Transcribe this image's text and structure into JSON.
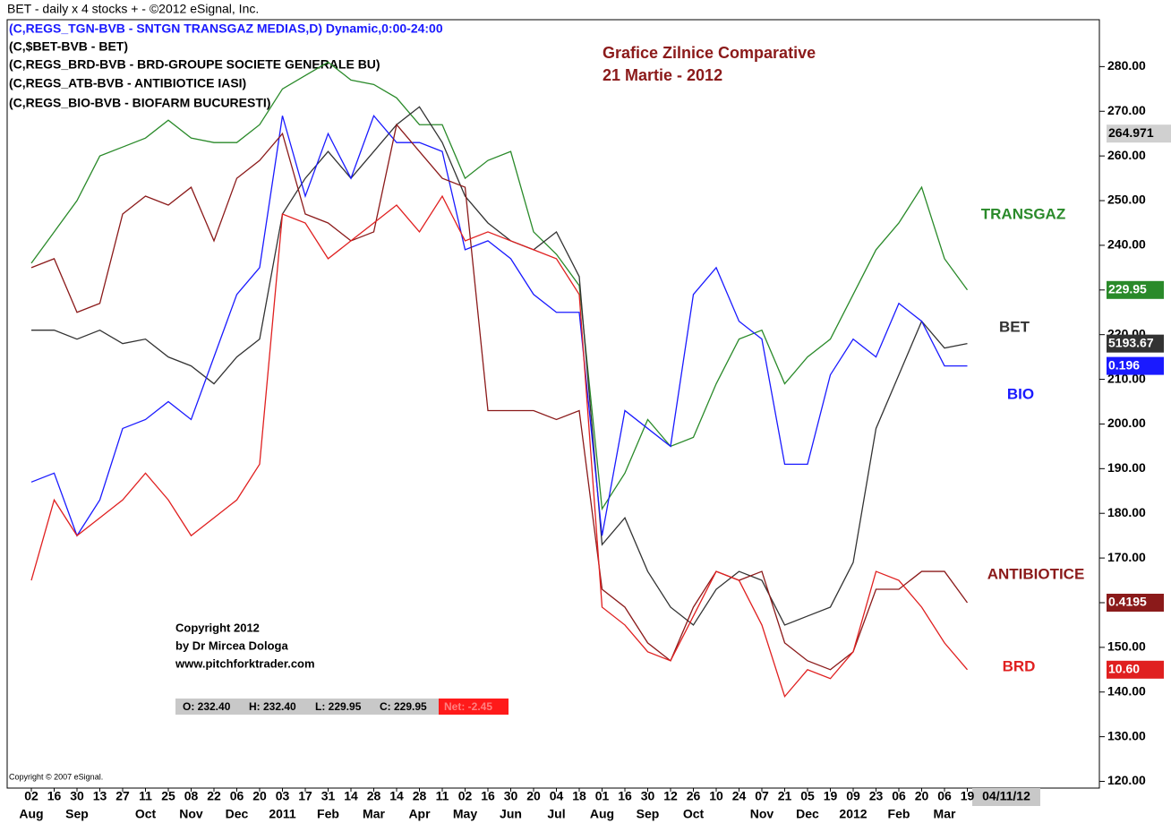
{
  "chart_data": {
    "type": "line",
    "title": "BET - daily x 4 stocks + - ©2012 eSignal, Inc.",
    "legend_lines": [
      "(C,REGS_TGN-BVB - SNTGN TRANSGAZ MEDIAS,D) Dynamic,0:00-24:00",
      "(C,$BET-BVB - BET)",
      "(C,REGS_BRD-BVB - BRD-GROUPE SOCIETE GENERALE BU)",
      "(C,REGS_ATB-BVB - ANTIBIOTICE IASI)",
      "(C,REGS_BIO-BVB - BIOFARM BUCURESTI)"
    ],
    "annotations": [
      "Grafice Zilnice Comparative",
      "21 Martie -  2012"
    ],
    "copyright": [
      "Copyright 2012",
      "by Dr Mircea Dologa",
      "www.pitchforktrader.com"
    ],
    "footer": "Copyright © 2007 eSignal.",
    "ohlc": [
      "O: 232.40",
      "H: 232.40",
      "L: 229.95",
      "C: 229.95",
      "Net: -2.45"
    ],
    "range_end": "04/11/12",
    "categories": [
      "02",
      "16",
      "30",
      "13",
      "27",
      "11",
      "25",
      "08",
      "22",
      "06",
      "20",
      "03",
      "17",
      "31",
      "14",
      "28",
      "14",
      "28",
      "11",
      "02",
      "16",
      "30",
      "20",
      "04",
      "18",
      "01",
      "16",
      "30",
      "12",
      "26",
      "10",
      "24",
      "07",
      "21",
      "05",
      "19",
      "09",
      "23",
      "06",
      "20",
      "06",
      "19"
    ],
    "month_labels": [
      {
        "value": 0,
        "label": "Aug"
      },
      {
        "value": 2,
        "label": "Sep"
      },
      {
        "value": 5,
        "label": "Oct"
      },
      {
        "value": 7,
        "label": "Nov"
      },
      {
        "value": 9,
        "label": "Dec"
      },
      {
        "value": 11,
        "label": "2011"
      },
      {
        "value": 13,
        "label": "Feb"
      },
      {
        "value": 15,
        "label": "Mar"
      },
      {
        "value": 17,
        "label": "Apr"
      },
      {
        "value": 19,
        "label": "May"
      },
      {
        "value": 21,
        "label": "Jun"
      },
      {
        "value": 23,
        "label": "Jul"
      },
      {
        "value": 25,
        "label": "Aug"
      },
      {
        "value": 27,
        "label": "Sep"
      },
      {
        "value": 29,
        "label": "Oct"
      },
      {
        "value": 32,
        "label": "Nov"
      },
      {
        "value": 34,
        "label": "Dec"
      },
      {
        "value": 36,
        "label": "2012"
      },
      {
        "value": 38,
        "label": "Feb"
      },
      {
        "value": 40,
        "label": "Mar"
      }
    ],
    "ylim": [
      118.5,
      290.5
    ],
    "yticks": [
      {
        "value": 120,
        "label": "120.00"
      },
      {
        "value": 130,
        "label": "130.00"
      },
      {
        "value": 140,
        "label": "140.00"
      },
      {
        "value": 150,
        "label": "150.00"
      },
      {
        "value": 160,
        "label": "160.00"
      },
      {
        "value": 170,
        "label": "170.00"
      },
      {
        "value": 180,
        "label": "180.00"
      },
      {
        "value": 190,
        "label": "190.00"
      },
      {
        "value": 200,
        "label": "200.00"
      },
      {
        "value": 210,
        "label": "210.00"
      },
      {
        "value": 220,
        "label": "220.00"
      },
      {
        "value": 230,
        "label": "230.00"
      },
      {
        "value": 240,
        "label": "240.00"
      },
      {
        "value": 250,
        "label": "250.00"
      },
      {
        "value": 260,
        "label": "260.00"
      },
      {
        "value": 270,
        "label": "270.00"
      },
      {
        "value": 280,
        "label": "280.00"
      }
    ],
    "cursor_value": {
      "value": 265,
      "label": "264.971"
    },
    "series": [
      {
        "name": "TRANSGAZ",
        "color": "#2a8a2a",
        "last_label": "229.95",
        "values": [
          236,
          243,
          250,
          260,
          262,
          264,
          268,
          264,
          263,
          263,
          267,
          275,
          278,
          281,
          277,
          276,
          273,
          267,
          267,
          255,
          259,
          261,
          243,
          238,
          231,
          181,
          189,
          201,
          195,
          197,
          209,
          219,
          221,
          209,
          215,
          219,
          229,
          239,
          245,
          253,
          237,
          230
        ]
      },
      {
        "name": "BET",
        "color": "#333333",
        "last_label": "5193.67",
        "values": [
          221,
          221,
          219,
          221,
          218,
          219,
          215,
          213,
          209,
          215,
          219,
          247,
          255,
          261,
          255,
          261,
          267,
          271,
          263,
          251,
          245,
          241,
          239,
          243,
          233,
          173,
          179,
          167,
          159,
          155,
          163,
          167,
          165,
          155,
          157,
          159,
          169,
          199,
          211,
          223,
          217,
          218
        ]
      },
      {
        "name": "BIO",
        "color": "#1a1aff",
        "last_label": "0.196",
        "values": [
          187,
          189,
          175,
          183,
          199,
          201,
          205,
          201,
          215,
          229,
          235,
          269,
          251,
          265,
          255,
          269,
          263,
          263,
          261,
          239,
          241,
          237,
          229,
          225,
          225,
          175,
          203,
          199,
          195,
          229,
          235,
          223,
          219,
          191,
          191,
          211,
          219,
          215,
          227,
          223,
          213,
          213
        ]
      },
      {
        "name": "ANTIBIOTICE",
        "color": "#8b1a1a",
        "last_label": "0.4195",
        "values": [
          235,
          237,
          225,
          227,
          247,
          251,
          249,
          253,
          241,
          255,
          259,
          265,
          247,
          245,
          241,
          243,
          267,
          261,
          255,
          253,
          203,
          203,
          203,
          201,
          203,
          163,
          159,
          151,
          147,
          159,
          167,
          165,
          167,
          151,
          147,
          145,
          149,
          163,
          163,
          167,
          167,
          160
        ]
      },
      {
        "name": "BRD",
        "color": "#e02020",
        "last_label": "10.60",
        "values": [
          165,
          183,
          175,
          179,
          183,
          189,
          183,
          175,
          179,
          183,
          191,
          247,
          245,
          237,
          241,
          245,
          249,
          243,
          251,
          241,
          243,
          241,
          239,
          237,
          229,
          159,
          155,
          149,
          147,
          157,
          167,
          165,
          155,
          139,
          145,
          143,
          149,
          167,
          165,
          159,
          151,
          145
        ]
      }
    ]
  }
}
